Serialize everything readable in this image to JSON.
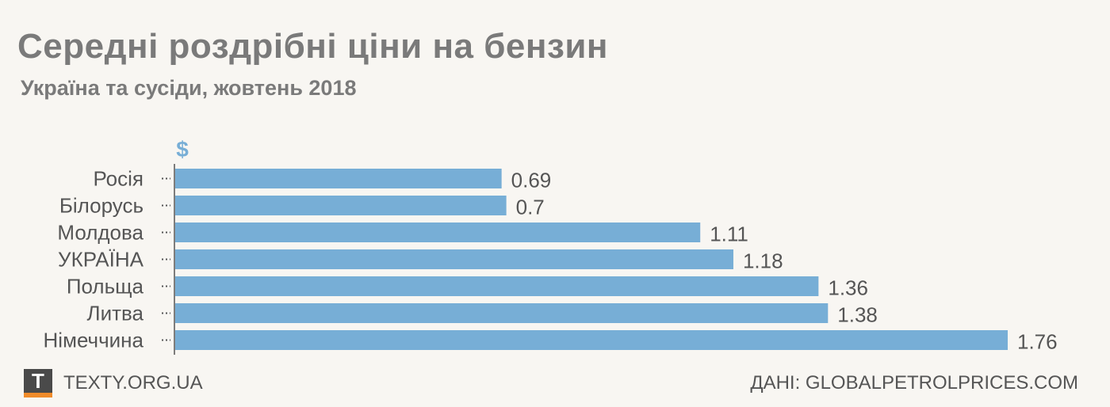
{
  "header": {
    "title": "Середні роздрібні ціни на бензин",
    "subtitle": "Україна та сусіди, жовтень 2018"
  },
  "footer": {
    "logo_letter": "T",
    "site": "TEXTY.ORG.UA",
    "source": "ДАНІ: GLOBALPETROLPRICES.COM"
  },
  "colors": {
    "bar": "#77aed6",
    "axis": "#555555",
    "label": "#555555",
    "unit": "#77aed6"
  },
  "chart_data": {
    "type": "bar",
    "orientation": "horizontal",
    "unit_label": "$",
    "categories": [
      "Росія",
      "Білорусь",
      "Молдова",
      "УКРАЇНА",
      "Польща",
      "Литва",
      "Німеччина"
    ],
    "values": [
      0.69,
      0.7,
      1.11,
      1.18,
      1.36,
      1.38,
      1.76
    ],
    "value_labels": [
      "0.69",
      "0.7",
      "1.11",
      "1.18",
      "1.36",
      "1.38",
      "1.76"
    ],
    "xlim": [
      0,
      1.76
    ],
    "grid": false,
    "legend": "none"
  }
}
